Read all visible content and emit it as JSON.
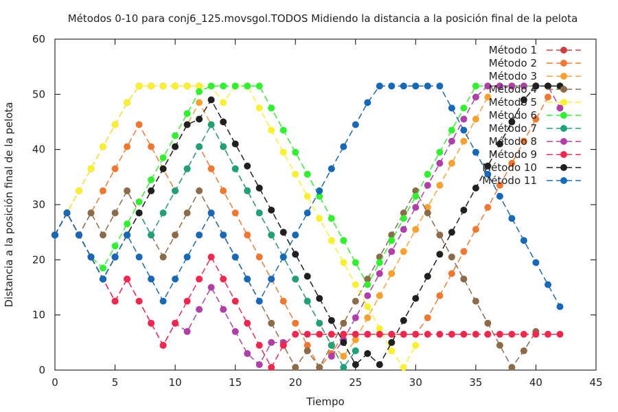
{
  "chart_data": {
    "type": "line",
    "title": "Métodos 0-10 para conj6_125.movsgol.TODOS Midiendo la distancia a la posición final de la pelota",
    "xlabel": "Tiempo",
    "ylabel": "Distancia a la posición final de la pelota",
    "xlim": [
      0,
      45
    ],
    "ylim": [
      0,
      60
    ],
    "xticks": [
      "0",
      "5",
      "10",
      "15",
      "20",
      "25",
      "30",
      "35",
      "40",
      "45"
    ],
    "yticks": [
      "0",
      "10",
      "20",
      "30",
      "40",
      "50",
      "60"
    ],
    "grid": false,
    "legend_position": "top-right",
    "x": [
      0,
      1,
      2,
      3,
      4,
      5,
      6,
      7,
      8,
      9,
      10,
      11,
      12,
      13,
      14,
      15,
      16,
      17,
      18,
      19,
      20,
      21,
      22,
      23,
      24,
      25,
      26,
      27,
      28,
      29,
      30,
      31,
      32,
      33,
      34,
      35,
      36,
      37,
      38,
      39,
      40,
      41,
      42
    ],
    "series": [
      {
        "name": "Método 1",
        "color": "#c84040",
        "values": [
          24.5,
          28.5,
          32.5,
          36.5,
          40.5,
          44.5,
          48.5,
          51.5,
          51.5,
          51.5,
          51.5,
          51.5,
          51.5,
          null,
          null,
          null,
          null,
          null,
          null,
          null,
          null,
          null,
          null,
          null,
          null,
          null,
          null,
          null,
          null,
          null,
          null,
          null,
          null,
          null,
          null,
          null,
          null,
          null,
          null,
          null,
          null,
          null,
          null
        ]
      },
      {
        "name": "Método 2",
        "color": "#f07830",
        "values": [
          24.5,
          28.5,
          24.5,
          28.5,
          32.5,
          36.5,
          40.5,
          44.5,
          40.5,
          36.5,
          32.5,
          36.5,
          40.5,
          36.5,
          32.5,
          28.5,
          24.5,
          20.5,
          16.5,
          12.5,
          8.5,
          4.5,
          0.5,
          3.0,
          6.5,
          6.5,
          6.5,
          6.5,
          6.5,
          6.5,
          6.5,
          9.5,
          13.5,
          17.5,
          21.5,
          25.5,
          29.5,
          33.5,
          37.5,
          41.5,
          45.5,
          49.5,
          null
        ]
      },
      {
        "name": "Método 3",
        "color": "#f8a030",
        "values": [
          24.5,
          28.5,
          24.5,
          20.5,
          16.5,
          20.5,
          24.5,
          28.5,
          32.5,
          36.5,
          40.5,
          44.5,
          48.5,
          44.5,
          40.5,
          36.5,
          32.5,
          28.5,
          24.5,
          20.5,
          16.5,
          12.5,
          8.5,
          4.5,
          2.5,
          5.5,
          9.5,
          13.5,
          17.5,
          21.5,
          25.5,
          29.5,
          33.5,
          37.5,
          41.5,
          45.5,
          49.5,
          null,
          null,
          null,
          null,
          null,
          null
        ]
      },
      {
        "name": "Método 4",
        "color": "#8b6b4a",
        "values": [
          24.5,
          28.5,
          24.5,
          28.5,
          24.5,
          28.5,
          32.5,
          28.5,
          24.5,
          20.5,
          24.5,
          28.5,
          32.5,
          28.5,
          24.5,
          20.5,
          16.5,
          12.5,
          8.5,
          4.5,
          0.5,
          3.5,
          0.5,
          4.5,
          8.5,
          12.5,
          16.5,
          20.5,
          24.5,
          28.5,
          32.5,
          28.5,
          24.5,
          20.5,
          16.5,
          12.5,
          8.5,
          4.5,
          0.5,
          3.5,
          7.0,
          null,
          null
        ]
      },
      {
        "name": "Método 5",
        "color": "#f8f030",
        "values": [
          24.5,
          28.5,
          32.5,
          36.5,
          40.5,
          44.5,
          48.5,
          51.5,
          51.5,
          51.5,
          51.5,
          51.5,
          51.5,
          51.5,
          48.5,
          51.5,
          51.5,
          47.5,
          43.5,
          39.5,
          35.5,
          31.5,
          27.5,
          23.5,
          19.5,
          15.5,
          11.5,
          7.5,
          3.5,
          0.5,
          4.5,
          null,
          null,
          null,
          null,
          null,
          null,
          null,
          null,
          null,
          null,
          null,
          null
        ]
      },
      {
        "name": "Método 6",
        "color": "#30f030",
        "values": [
          24.5,
          28.5,
          24.5,
          20.5,
          18.5,
          22.5,
          26.5,
          30.5,
          34.5,
          38.5,
          42.5,
          46.5,
          50.5,
          51.5,
          51.5,
          51.5,
          51.5,
          51.5,
          47.5,
          43.5,
          39.5,
          35.5,
          31.5,
          27.5,
          23.5,
          19.5,
          15.5,
          19.5,
          23.5,
          27.5,
          31.5,
          35.5,
          39.5,
          43.5,
          47.5,
          51.5,
          51.5,
          51.5,
          51.5,
          51.5,
          51.5,
          51.5,
          51.5
        ]
      },
      {
        "name": "Método 7",
        "color": "#20a078",
        "values": [
          24.5,
          28.5,
          24.5,
          20.5,
          16.5,
          20.5,
          24.5,
          28.5,
          24.5,
          28.5,
          32.5,
          36.5,
          40.5,
          44.5,
          40.5,
          36.5,
          32.5,
          28.5,
          24.5,
          20.5,
          16.5,
          12.5,
          8.5,
          4.5,
          0.5,
          3.5,
          null,
          null,
          null,
          null,
          null,
          null,
          null,
          null,
          null,
          null,
          null,
          null,
          null,
          null,
          null,
          null,
          null
        ]
      },
      {
        "name": "Método 8",
        "color": "#b040a8",
        "values": [
          24.5,
          28.5,
          24.5,
          20.5,
          16.5,
          12.5,
          16.5,
          12.5,
          8.5,
          4.5,
          8.5,
          7.0,
          11.0,
          15.0,
          11.0,
          7.0,
          3.0,
          1.0,
          5.0,
          5.0,
          null,
          null,
          null,
          2.5,
          5.5,
          9.5,
          13.5,
          17.5,
          21.5,
          25.5,
          29.5,
          33.5,
          37.5,
          41.5,
          45.5,
          49.5,
          51.5,
          51.5,
          51.5,
          51.5,
          51.5,
          51.5,
          47.5
        ]
      },
      {
        "name": "Método 9",
        "color": "#f02850",
        "values": [
          24.5,
          28.5,
          24.5,
          20.5,
          16.5,
          12.5,
          16.5,
          12.5,
          8.5,
          4.5,
          8.5,
          12.5,
          16.5,
          20.5,
          16.5,
          12.5,
          8.5,
          4.5,
          0.5,
          4.5,
          6.5,
          6.5,
          6.5,
          6.5,
          6.5,
          6.5,
          6.5,
          6.5,
          6.5,
          6.5,
          6.5,
          6.5,
          6.5,
          6.5,
          6.5,
          6.5,
          6.5,
          6.5,
          6.5,
          6.5,
          6.5,
          6.5,
          6.5
        ]
      },
      {
        "name": "Método 10",
        "color": "#202020",
        "values": [
          24.5,
          28.5,
          24.5,
          20.5,
          16.5,
          20.5,
          24.5,
          28.5,
          32.5,
          36.5,
          40.5,
          44.5,
          45.5,
          49.0,
          45.0,
          41.0,
          37.0,
          33.0,
          29.0,
          25.0,
          21.0,
          17.0,
          13.0,
          9.0,
          5.0,
          1.0,
          3.0,
          1.0,
          5.0,
          9.0,
          13.0,
          17.0,
          21.0,
          25.0,
          29.0,
          33.0,
          37.0,
          41.0,
          45.0,
          49.0,
          51.5,
          51.5,
          51.5
        ]
      },
      {
        "name": "Método 11",
        "color": "#1868b8",
        "values": [
          24.5,
          28.5,
          24.5,
          20.5,
          16.5,
          20.5,
          24.5,
          20.5,
          16.5,
          12.5,
          16.5,
          20.5,
          24.5,
          28.5,
          24.5,
          20.5,
          16.5,
          12.5,
          16.5,
          20.5,
          24.5,
          28.5,
          32.5,
          36.5,
          40.5,
          44.5,
          48.5,
          51.5,
          51.5,
          51.5,
          51.5,
          51.5,
          51.5,
          47.5,
          43.5,
          39.5,
          35.5,
          31.5,
          27.5,
          23.5,
          19.5,
          15.5,
          11.5
        ]
      }
    ]
  }
}
